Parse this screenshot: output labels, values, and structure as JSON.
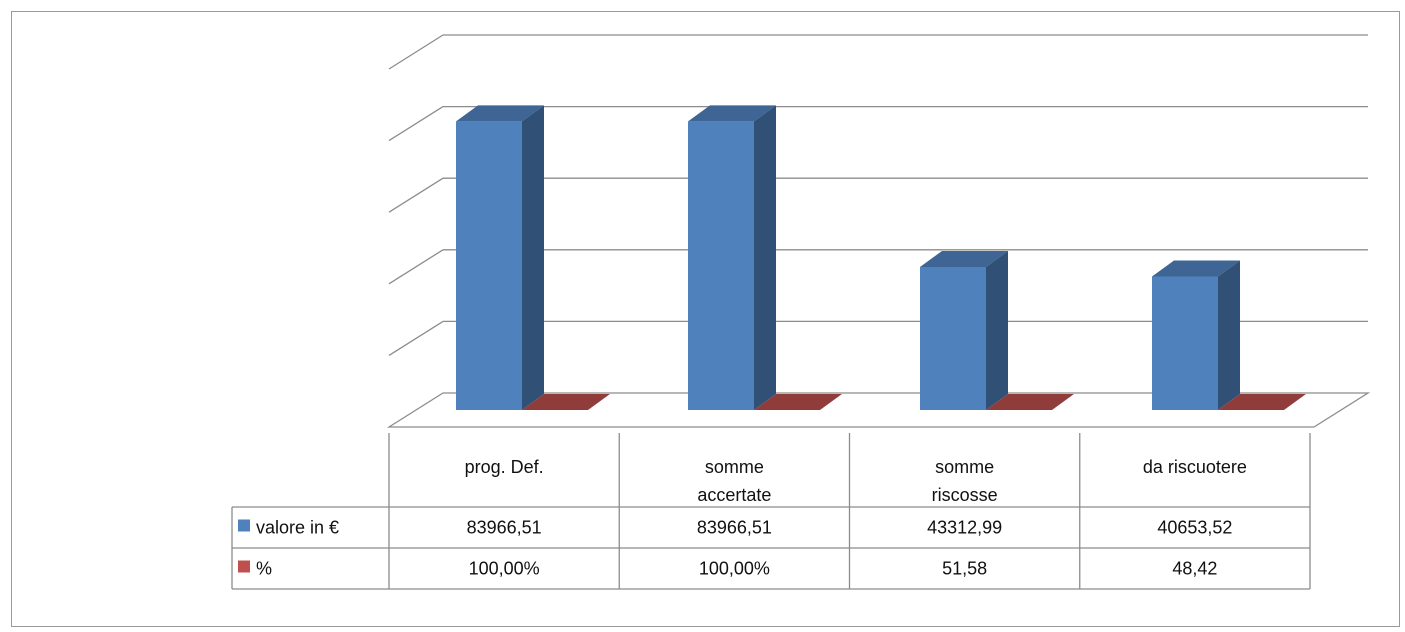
{
  "chart_data": {
    "type": "bar",
    "style": "3d-clustered-column-with-data-table",
    "categories": [
      "prog. Def.",
      "somme\naccertate",
      "somme\nriscosse",
      "da riscuotere"
    ],
    "series": [
      {
        "name": "valore in €",
        "values": [
          83966.51,
          83966.51,
          43312.99,
          40653.52
        ],
        "labels": [
          "83966,51",
          "83966,51",
          "43312,99",
          "40653,52"
        ],
        "color": "#4F81BD"
      },
      {
        "name": "%",
        "values": [
          100.0,
          100.0,
          51.58,
          48.42
        ],
        "labels": [
          "100,00%",
          "100,00%",
          "51,58",
          "48,42"
        ],
        "color": "#C0504D"
      }
    ],
    "ylim": [
      0,
      100000
    ],
    "gridlines": true,
    "legend": "in-table",
    "axis_tick_labels_visible": false
  }
}
